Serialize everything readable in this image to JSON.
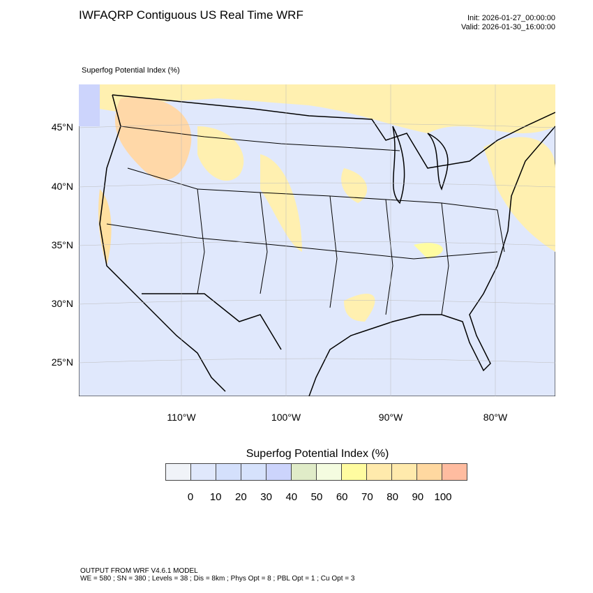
{
  "title": "IWFAQRP Contiguous US Real Time WRF",
  "init": "Init: 2026-01-27_00:00:00",
  "valid": "Valid: 2026-01-30_16:00:00",
  "subtitle": "Superfog Potential Index   (%)",
  "lat_labels": [
    "45°N",
    "40°N",
    "35°N",
    "30°N",
    "25°N"
  ],
  "lon_labels": [
    "110°W",
    "100°W",
    "90°W",
    "80°W"
  ],
  "colorbar": {
    "title": "Superfog Potential Index  (%)",
    "labels": [
      "0",
      "10",
      "20",
      "30",
      "40",
      "50",
      "60",
      "70",
      "80",
      "90",
      "100"
    ],
    "colors": [
      "#f0f3f8",
      "#e0e8fc",
      "#d4e0fc",
      "#d6e2fc",
      "#ccd4fc",
      "#e0ecc8",
      "#f4fce0",
      "#fffca0",
      "#ffeaac",
      "#ffeaac",
      "#ffd8a0",
      "#ffbca0"
    ]
  },
  "footer": {
    "line1": "OUTPUT FROM WRF V4.6.1 MODEL",
    "line2": "WE = 580 ; SN = 380 ; Levels = 38 ; Dis = 8km ; Phys Opt = 8 ; PBL Opt = 1 ; Cu Opt = 3"
  }
}
